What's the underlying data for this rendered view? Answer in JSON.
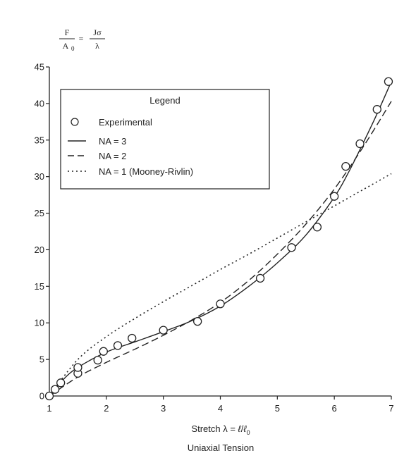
{
  "chart_data": {
    "type": "scatter",
    "title": "",
    "y_formula": {
      "lhs_numerator": "F",
      "lhs_denominator": "A",
      "lhs_denominator_sub": "0",
      "equals": "=",
      "rhs_numerator": "Jσ",
      "rhs_denominator": "λ"
    },
    "xlabel": {
      "prefix": "Stretch  λ = ",
      "num": "ℓ",
      "slash": "/",
      "den": "ℓ",
      "den_sub": "0"
    },
    "caption": "Uniaxial Tension",
    "xlim": [
      1,
      7
    ],
    "ylim": [
      0,
      45
    ],
    "xticks": [
      1,
      2,
      3,
      4,
      5,
      6,
      7
    ],
    "yticks": [
      0,
      5,
      10,
      15,
      20,
      25,
      30,
      35,
      40,
      45
    ],
    "grid": false,
    "legend": {
      "title": "Legend",
      "position": "top-left",
      "entries": [
        {
          "label": "Experimental",
          "marker": "circle"
        },
        {
          "label": "NA = 3",
          "line": "solid"
        },
        {
          "label": "NA = 2",
          "line": "dashed"
        },
        {
          "label": "NA = 1 (Mooney-Rivlin)",
          "line": "dotted"
        }
      ]
    },
    "series": [
      {
        "name": "Experimental",
        "kind": "points",
        "x": [
          1.0,
          1.1,
          1.2,
          1.5,
          1.5,
          1.85,
          1.95,
          2.2,
          2.45,
          3.0,
          3.6,
          4.0,
          4.7,
          5.25,
          5.7,
          6.0,
          6.2,
          6.45,
          6.75,
          6.95
        ],
        "y": [
          0.0,
          0.9,
          1.8,
          3.1,
          3.9,
          4.9,
          6.1,
          6.9,
          7.9,
          9.0,
          10.2,
          12.6,
          16.1,
          20.3,
          23.1,
          27.3,
          31.4,
          34.5,
          39.2,
          43.0
        ]
      },
      {
        "name": "NA = 3",
        "kind": "line",
        "style": "solid",
        "x": [
          1.0,
          1.25,
          1.5,
          2.0,
          2.5,
          3.0,
          3.5,
          4.0,
          4.5,
          5.0,
          5.5,
          6.0,
          6.25,
          6.5,
          6.75,
          7.0
        ],
        "y": [
          0.0,
          2.3,
          3.9,
          6.0,
          7.4,
          8.8,
          10.3,
          12.3,
          15.0,
          18.2,
          22.0,
          27.2,
          30.6,
          34.5,
          38.6,
          43.0
        ]
      },
      {
        "name": "NA = 2",
        "kind": "line",
        "style": "dashed",
        "x": [
          1.0,
          1.5,
          2.0,
          2.5,
          3.0,
          3.5,
          4.0,
          4.5,
          5.0,
          5.5,
          6.0,
          6.5,
          7.0
        ],
        "y": [
          0.0,
          2.6,
          4.6,
          6.4,
          8.3,
          10.4,
          12.8,
          15.8,
          19.4,
          23.5,
          28.3,
          34.0,
          40.3
        ]
      },
      {
        "name": "NA = 1 (Mooney-Rivlin)",
        "kind": "line",
        "style": "dotted",
        "x": [
          1.0,
          1.5,
          2.0,
          2.5,
          3.0,
          3.5,
          4.0,
          4.5,
          5.0,
          5.5,
          6.0,
          6.5,
          7.0
        ],
        "y": [
          0.0,
          5.0,
          8.1,
          10.6,
          12.9,
          15.1,
          17.3,
          19.4,
          21.6,
          23.8,
          26.0,
          28.2,
          30.4
        ]
      }
    ]
  }
}
